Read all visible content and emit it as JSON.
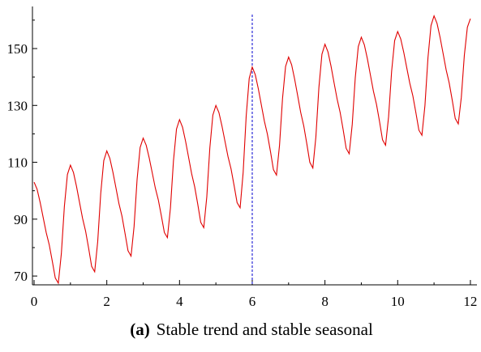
{
  "chart_data": {
    "type": "line",
    "caption_label": "(a)",
    "caption": "Stable trend and stable seasonal",
    "x": [
      0,
      0.0833,
      0.1667,
      0.25,
      0.3333,
      0.4167,
      0.5,
      0.5833,
      0.6667,
      0.75,
      0.8333,
      0.9167,
      1,
      1.0833,
      1.1667,
      1.25,
      1.3333,
      1.4167,
      1.5,
      1.5833,
      1.6667,
      1.75,
      1.8333,
      1.9167,
      2,
      2.0833,
      2.1667,
      2.25,
      2.3333,
      2.4167,
      2.5,
      2.5833,
      2.6667,
      2.75,
      2.8333,
      2.9167,
      3,
      3.0833,
      3.1667,
      3.25,
      3.3333,
      3.4167,
      3.5,
      3.5833,
      3.6667,
      3.75,
      3.8333,
      3.9167,
      4,
      4.0833,
      4.1667,
      4.25,
      4.3333,
      4.4167,
      4.5,
      4.5833,
      4.6667,
      4.75,
      4.8333,
      4.9167,
      5,
      5.0833,
      5.1667,
      5.25,
      5.3333,
      5.4167,
      5.5,
      5.5833,
      5.6667,
      5.75,
      5.8333,
      5.9167,
      6,
      6.0833,
      6.1667,
      6.25,
      6.3333,
      6.4167,
      6.5,
      6.5833,
      6.6667,
      6.75,
      6.8333,
      6.9167,
      7,
      7.0833,
      7.1667,
      7.25,
      7.3333,
      7.4167,
      7.5,
      7.5833,
      7.6667,
      7.75,
      7.8333,
      7.9167,
      8,
      8.0833,
      8.1667,
      8.25,
      8.3333,
      8.4167,
      8.5,
      8.5833,
      8.6667,
      8.75,
      8.8333,
      8.9167,
      9,
      9.0833,
      9.1667,
      9.25,
      9.3333,
      9.4167,
      9.5,
      9.5833,
      9.6667,
      9.75,
      9.8333,
      9.9167,
      10,
      10.0833,
      10.1667,
      10.25,
      10.3333,
      10.4167,
      10.5,
      10.5833,
      10.6667,
      10.75,
      10.8333,
      10.9167,
      11,
      11.0833,
      11.1667,
      11.25,
      11.3333,
      11.4167,
      11.5,
      11.5833,
      11.6667,
      11.75,
      11.8333,
      11.9167,
      12
    ],
    "series": [
      {
        "color": "#e00000",
        "values": [
          103,
          100.5,
          95.9,
          90.6,
          85.3,
          81,
          75.3,
          69.3,
          67.5,
          77.9,
          94.5,
          105.7,
          109,
          106.4,
          101.5,
          95.9,
          90.3,
          85.8,
          79.8,
          73.4,
          71.5,
          82.1,
          99.1,
          110.6,
          114,
          111.4,
          106.6,
          101.1,
          95.5,
          91.1,
          85.1,
          78.9,
          77,
          87.4,
          104,
          115.2,
          118.5,
          116,
          111.5,
          106.3,
          101,
          96.8,
          91.2,
          85.3,
          83.5,
          93.9,
          110.5,
          121.7,
          125,
          122.3,
          117.4,
          111.7,
          106,
          101.4,
          95.4,
          88.9,
          87,
          97.8,
          115,
          126.6,
          130,
          127.5,
          122.8,
          117.4,
          112,
          107.7,
          101.9,
          95.8,
          94,
          106.4,
          126.2,
          139.5,
          143.5,
          140.8,
          135.9,
          130.2,
          124.5,
          119.9,
          113.9,
          107.4,
          105.5,
          115.9,
          132.5,
          143.7,
          147,
          144.3,
          139.2,
          133.4,
          127.5,
          122.8,
          116.6,
          110,
          108,
          118.9,
          136.3,
          148,
          151.5,
          148.8,
          143.8,
          138,
          132.3,
          127.6,
          121.5,
          114.9,
          113,
          123.3,
          139.7,
          150.7,
          154,
          151.3,
          146.4,
          140.7,
          135,
          130.4,
          124.4,
          117.9,
          116,
          126,
          142,
          152.8,
          156,
          153.4,
          148.7,
          143.2,
          137.8,
          133.4,
          127.5,
          121.3,
          119.5,
          130,
          146.8,
          158.1,
          161.5,
          158.8,
          153.9,
          148.2,
          142.5,
          137.9,
          131.9,
          125.4,
          123.5,
          132.8,
          147.6,
          157.5,
          160.5
        ]
      }
    ],
    "vline": {
      "x": 6,
      "color": "#2b2bd6",
      "dashed": true
    },
    "xlim": [
      -0.045,
      12.18
    ],
    "xticks": [
      0,
      2,
      4,
      6,
      8,
      10,
      12
    ],
    "xminor": [
      1,
      3,
      5,
      7,
      9,
      11
    ],
    "ylim": [
      66.9,
      164.8
    ],
    "yticks": [
      70,
      90,
      110,
      130,
      150
    ],
    "yminor": [
      80,
      100,
      120,
      140,
      160
    ]
  }
}
